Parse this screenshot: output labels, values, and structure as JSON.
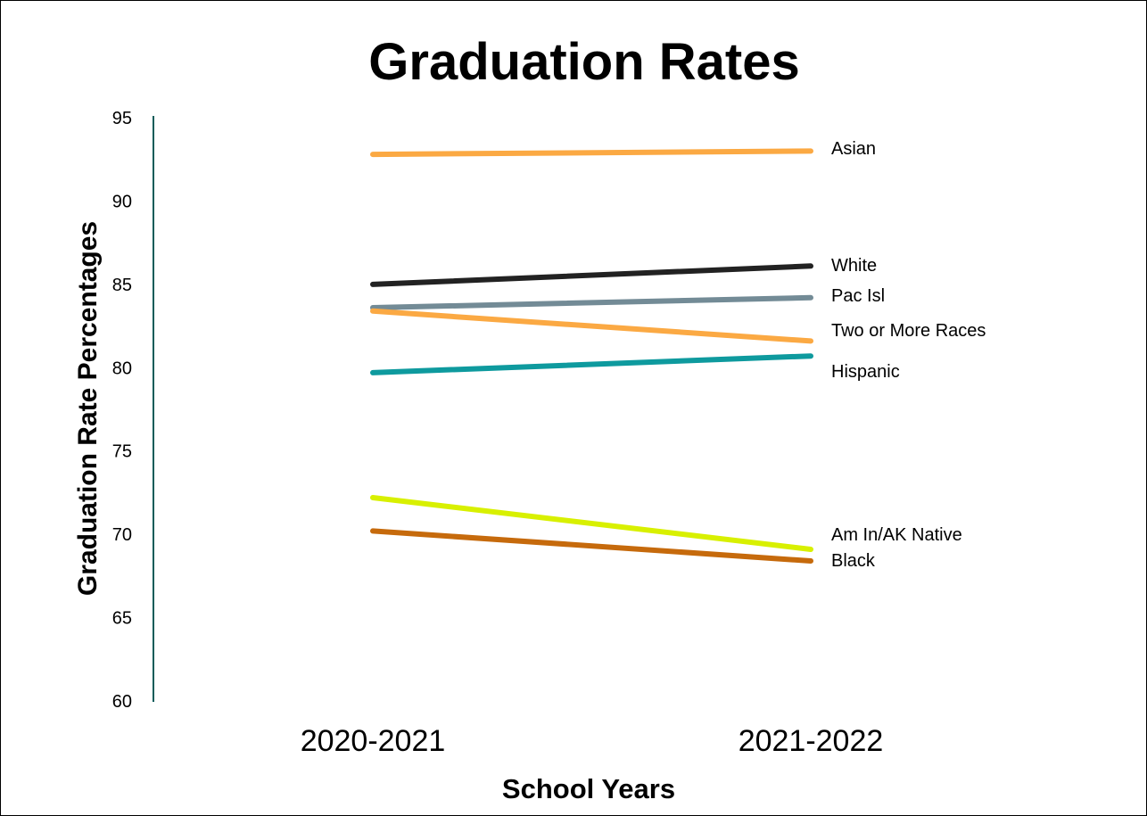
{
  "chart_data": {
    "type": "line",
    "title": "Graduation Rates",
    "xlabel": "School Years",
    "ylabel": "Graduation Rate Percentages",
    "categories": [
      "2020-2021",
      "2021-2022"
    ],
    "ylim": [
      60,
      95
    ],
    "yticks": [
      "95",
      "90",
      "85",
      "80",
      "75",
      "70",
      "65",
      "60"
    ],
    "grid": false,
    "legend": "labels at line ends (right)",
    "series": [
      {
        "name": "Asian",
        "values": [
          92.8,
          93.0
        ],
        "color": "#FBA943"
      },
      {
        "name": "White",
        "values": [
          85.0,
          86.1
        ],
        "color": "#222222"
      },
      {
        "name": "Pac Isl",
        "values": [
          83.6,
          84.2
        ],
        "color": "#738B96"
      },
      {
        "name": "Two or More Races",
        "values": [
          83.4,
          81.6
        ],
        "color": "#FBA943"
      },
      {
        "name": "Hispanic",
        "values": [
          79.7,
          80.7
        ],
        "color": "#0E9A9E"
      },
      {
        "name": "Am In/AK Native",
        "values": [
          72.2,
          69.1
        ],
        "color": "#D8F000"
      },
      {
        "name": "Black",
        "values": [
          70.2,
          68.4
        ],
        "color": "#C66A0C"
      }
    ]
  }
}
